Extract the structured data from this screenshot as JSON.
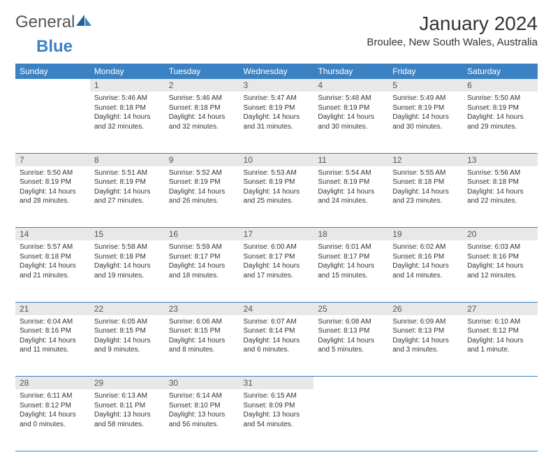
{
  "brand": {
    "part1": "General",
    "part2": "Blue",
    "accent_color": "#3b82c4"
  },
  "title": "January 2024",
  "location": "Broulee, New South Wales, Australia",
  "weekdays": [
    "Sunday",
    "Monday",
    "Tuesday",
    "Wednesday",
    "Thursday",
    "Friday",
    "Saturday"
  ],
  "header_bg": "#3b82c4",
  "header_fg": "#ffffff",
  "daynum_bg": "#e8e8e8",
  "border_color": "#3b82c4",
  "text_color": "#333333",
  "body_fontsize": 10,
  "weeks": [
    [
      {
        "day": "",
        "sunrise": "",
        "sunset": "",
        "daylight": ""
      },
      {
        "day": "1",
        "sunrise": "Sunrise: 5:46 AM",
        "sunset": "Sunset: 8:18 PM",
        "daylight": "Daylight: 14 hours and 32 minutes."
      },
      {
        "day": "2",
        "sunrise": "Sunrise: 5:46 AM",
        "sunset": "Sunset: 8:18 PM",
        "daylight": "Daylight: 14 hours and 32 minutes."
      },
      {
        "day": "3",
        "sunrise": "Sunrise: 5:47 AM",
        "sunset": "Sunset: 8:19 PM",
        "daylight": "Daylight: 14 hours and 31 minutes."
      },
      {
        "day": "4",
        "sunrise": "Sunrise: 5:48 AM",
        "sunset": "Sunset: 8:19 PM",
        "daylight": "Daylight: 14 hours and 30 minutes."
      },
      {
        "day": "5",
        "sunrise": "Sunrise: 5:49 AM",
        "sunset": "Sunset: 8:19 PM",
        "daylight": "Daylight: 14 hours and 30 minutes."
      },
      {
        "day": "6",
        "sunrise": "Sunrise: 5:50 AM",
        "sunset": "Sunset: 8:19 PM",
        "daylight": "Daylight: 14 hours and 29 minutes."
      }
    ],
    [
      {
        "day": "7",
        "sunrise": "Sunrise: 5:50 AM",
        "sunset": "Sunset: 8:19 PM",
        "daylight": "Daylight: 14 hours and 28 minutes."
      },
      {
        "day": "8",
        "sunrise": "Sunrise: 5:51 AM",
        "sunset": "Sunset: 8:19 PM",
        "daylight": "Daylight: 14 hours and 27 minutes."
      },
      {
        "day": "9",
        "sunrise": "Sunrise: 5:52 AM",
        "sunset": "Sunset: 8:19 PM",
        "daylight": "Daylight: 14 hours and 26 minutes."
      },
      {
        "day": "10",
        "sunrise": "Sunrise: 5:53 AM",
        "sunset": "Sunset: 8:19 PM",
        "daylight": "Daylight: 14 hours and 25 minutes."
      },
      {
        "day": "11",
        "sunrise": "Sunrise: 5:54 AM",
        "sunset": "Sunset: 8:19 PM",
        "daylight": "Daylight: 14 hours and 24 minutes."
      },
      {
        "day": "12",
        "sunrise": "Sunrise: 5:55 AM",
        "sunset": "Sunset: 8:18 PM",
        "daylight": "Daylight: 14 hours and 23 minutes."
      },
      {
        "day": "13",
        "sunrise": "Sunrise: 5:56 AM",
        "sunset": "Sunset: 8:18 PM",
        "daylight": "Daylight: 14 hours and 22 minutes."
      }
    ],
    [
      {
        "day": "14",
        "sunrise": "Sunrise: 5:57 AM",
        "sunset": "Sunset: 8:18 PM",
        "daylight": "Daylight: 14 hours and 21 minutes."
      },
      {
        "day": "15",
        "sunrise": "Sunrise: 5:58 AM",
        "sunset": "Sunset: 8:18 PM",
        "daylight": "Daylight: 14 hours and 19 minutes."
      },
      {
        "day": "16",
        "sunrise": "Sunrise: 5:59 AM",
        "sunset": "Sunset: 8:17 PM",
        "daylight": "Daylight: 14 hours and 18 minutes."
      },
      {
        "day": "17",
        "sunrise": "Sunrise: 6:00 AM",
        "sunset": "Sunset: 8:17 PM",
        "daylight": "Daylight: 14 hours and 17 minutes."
      },
      {
        "day": "18",
        "sunrise": "Sunrise: 6:01 AM",
        "sunset": "Sunset: 8:17 PM",
        "daylight": "Daylight: 14 hours and 15 minutes."
      },
      {
        "day": "19",
        "sunrise": "Sunrise: 6:02 AM",
        "sunset": "Sunset: 8:16 PM",
        "daylight": "Daylight: 14 hours and 14 minutes."
      },
      {
        "day": "20",
        "sunrise": "Sunrise: 6:03 AM",
        "sunset": "Sunset: 8:16 PM",
        "daylight": "Daylight: 14 hours and 12 minutes."
      }
    ],
    [
      {
        "day": "21",
        "sunrise": "Sunrise: 6:04 AM",
        "sunset": "Sunset: 8:16 PM",
        "daylight": "Daylight: 14 hours and 11 minutes."
      },
      {
        "day": "22",
        "sunrise": "Sunrise: 6:05 AM",
        "sunset": "Sunset: 8:15 PM",
        "daylight": "Daylight: 14 hours and 9 minutes."
      },
      {
        "day": "23",
        "sunrise": "Sunrise: 6:06 AM",
        "sunset": "Sunset: 8:15 PM",
        "daylight": "Daylight: 14 hours and 8 minutes."
      },
      {
        "day": "24",
        "sunrise": "Sunrise: 6:07 AM",
        "sunset": "Sunset: 8:14 PM",
        "daylight": "Daylight: 14 hours and 6 minutes."
      },
      {
        "day": "25",
        "sunrise": "Sunrise: 6:08 AM",
        "sunset": "Sunset: 8:13 PM",
        "daylight": "Daylight: 14 hours and 5 minutes."
      },
      {
        "day": "26",
        "sunrise": "Sunrise: 6:09 AM",
        "sunset": "Sunset: 8:13 PM",
        "daylight": "Daylight: 14 hours and 3 minutes."
      },
      {
        "day": "27",
        "sunrise": "Sunrise: 6:10 AM",
        "sunset": "Sunset: 8:12 PM",
        "daylight": "Daylight: 14 hours and 1 minute."
      }
    ],
    [
      {
        "day": "28",
        "sunrise": "Sunrise: 6:11 AM",
        "sunset": "Sunset: 8:12 PM",
        "daylight": "Daylight: 14 hours and 0 minutes."
      },
      {
        "day": "29",
        "sunrise": "Sunrise: 6:13 AM",
        "sunset": "Sunset: 8:11 PM",
        "daylight": "Daylight: 13 hours and 58 minutes."
      },
      {
        "day": "30",
        "sunrise": "Sunrise: 6:14 AM",
        "sunset": "Sunset: 8:10 PM",
        "daylight": "Daylight: 13 hours and 56 minutes."
      },
      {
        "day": "31",
        "sunrise": "Sunrise: 6:15 AM",
        "sunset": "Sunset: 8:09 PM",
        "daylight": "Daylight: 13 hours and 54 minutes."
      },
      {
        "day": "",
        "sunrise": "",
        "sunset": "",
        "daylight": ""
      },
      {
        "day": "",
        "sunrise": "",
        "sunset": "",
        "daylight": ""
      },
      {
        "day": "",
        "sunrise": "",
        "sunset": "",
        "daylight": ""
      }
    ]
  ]
}
